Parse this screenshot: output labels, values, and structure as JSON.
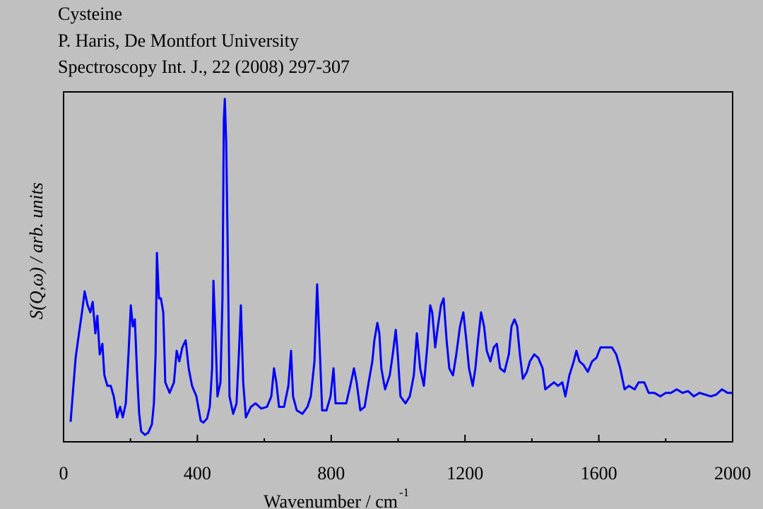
{
  "chart_data": {
    "type": "line",
    "title_lines": [
      "Cysteine",
      "P. Haris, De Montfort University",
      "Spectroscopy Int. J., 22 (2008) 297-307"
    ],
    "xlabel": "Wavenumber / cm",
    "xlabel_superscript": "-1",
    "ylabel": "S(Q,ω) / arb. units",
    "xlim": [
      0,
      2000
    ],
    "xticks": [
      0,
      400,
      800,
      1200,
      1600,
      2000
    ],
    "xminor_ticks": [
      200,
      600,
      1000,
      1400,
      1800
    ],
    "ylim": [
      0,
      100
    ],
    "series": [
      {
        "color": "#0000ff",
        "x": [
          21,
          27,
          36,
          46,
          55,
          63,
          72,
          80,
          87,
          95,
          101,
          108,
          116,
          122,
          131,
          141,
          150,
          160,
          169,
          177,
          186,
          194,
          201,
          207,
          213,
          220,
          226,
          232,
          243,
          253,
          264,
          270,
          275,
          279,
          285,
          291,
          298,
          304,
          317,
          330,
          338,
          346,
          355,
          365,
          374,
          384,
          397,
          410,
          418,
          429,
          437,
          444,
          448,
          454,
          460,
          469,
          475,
          479,
          482,
          486,
          490,
          496,
          507,
          517,
          524,
          530,
          537,
          545,
          560,
          574,
          591,
          608,
          621,
          629,
          636,
          644,
          659,
          672,
          680,
          686,
          697,
          714,
          729,
          739,
          750,
          758,
          764,
          773,
          786,
          798,
          807,
          813,
          828,
          845,
          857,
          868,
          876,
          887,
          900,
          912,
          923,
          929,
          938,
          944,
          950,
          961,
          975,
          984,
          993,
          999,
          1007,
          1022,
          1035,
          1047,
          1056,
          1066,
          1077,
          1087,
          1096,
          1102,
          1111,
          1119,
          1128,
          1136,
          1145,
          1153,
          1164,
          1174,
          1185,
          1195,
          1204,
          1212,
          1223,
          1231,
          1239,
          1248,
          1257,
          1265,
          1276,
          1286,
          1295,
          1305,
          1318,
          1331,
          1339,
          1348,
          1356,
          1364,
          1373,
          1385,
          1394,
          1407,
          1419,
          1432,
          1440,
          1453,
          1466,
          1478,
          1491,
          1500,
          1512,
          1525,
          1533,
          1542,
          1554,
          1567,
          1580,
          1593,
          1605,
          1622,
          1639,
          1652,
          1664,
          1677,
          1690,
          1707,
          1719,
          1736,
          1749,
          1766,
          1784,
          1800,
          1816,
          1833,
          1850,
          1867,
          1884,
          1901,
          1918,
          1935,
          1951,
          1968,
          1985,
          1998
        ],
        "values": [
          5.7,
          13,
          24,
          31,
          37,
          43,
          39,
          37,
          40,
          31,
          36,
          25,
          28,
          19,
          16,
          16,
          13,
          7,
          10,
          7,
          11,
          25,
          39,
          33,
          35,
          19,
          8,
          3,
          2,
          2.6,
          5,
          11,
          25,
          54,
          41,
          41,
          37,
          17,
          14,
          17,
          26,
          23,
          27,
          29,
          21,
          16,
          13,
          6,
          5.5,
          6.7,
          10,
          21,
          46,
          31,
          13,
          17,
          41,
          92,
          98,
          86,
          60,
          13,
          8,
          11,
          25,
          39,
          17,
          7,
          10,
          11,
          9.5,
          10,
          13,
          21,
          17,
          10,
          10,
          16,
          26,
          13,
          9,
          8,
          10,
          13,
          23,
          45,
          31,
          9,
          9,
          13,
          21,
          11,
          11,
          11,
          16,
          21,
          17,
          9,
          10,
          17,
          23,
          29,
          34,
          31,
          21,
          15,
          19,
          25,
          32,
          25,
          13,
          11,
          13,
          19,
          31,
          21,
          16,
          27,
          39,
          37,
          27,
          33,
          39,
          41,
          29,
          21,
          19,
          25,
          33,
          37,
          29,
          21,
          16,
          21,
          29,
          37,
          33,
          26,
          23,
          27,
          28,
          21,
          20,
          25,
          33,
          35,
          33,
          25,
          18,
          20,
          23,
          25,
          24,
          21,
          15,
          16,
          17,
          16,
          17,
          13,
          19,
          23,
          26,
          23,
          22,
          20,
          23,
          24,
          27,
          27,
          27,
          25,
          21,
          15,
          16,
          15,
          17,
          17,
          14,
          14,
          13,
          14,
          14,
          15,
          14,
          14.5,
          13,
          14,
          13.5,
          13,
          13.5,
          15,
          14,
          14
        ]
      }
    ]
  }
}
